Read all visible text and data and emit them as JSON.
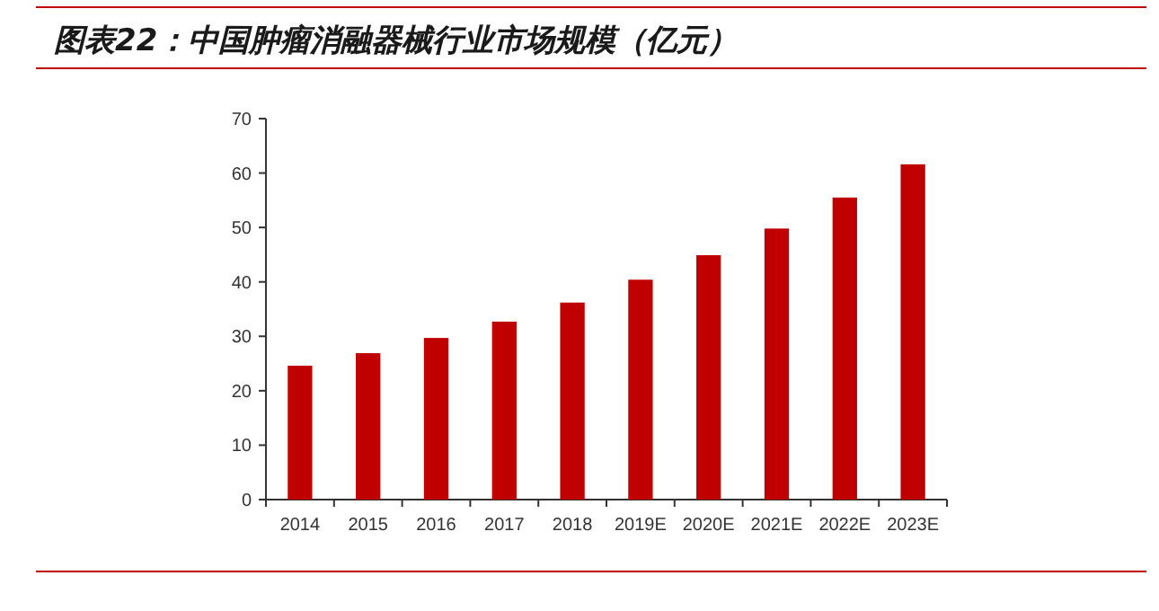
{
  "chart_data": {
    "type": "bar",
    "title": "图表22：中国肿瘤消融器械行业市场规模（亿元）",
    "categories": [
      "2014",
      "2015",
      "2016",
      "2017",
      "2018",
      "2019E",
      "2020E",
      "2021E",
      "2022E",
      "2023E"
    ],
    "values": [
      24.6,
      26.9,
      29.7,
      32.7,
      36.2,
      40.4,
      44.9,
      49.8,
      55.5,
      61.6
    ],
    "color": "#c00000",
    "ylim": [
      0,
      70
    ],
    "yticks": [
      0,
      10,
      20,
      30,
      40,
      50,
      60,
      70
    ]
  }
}
